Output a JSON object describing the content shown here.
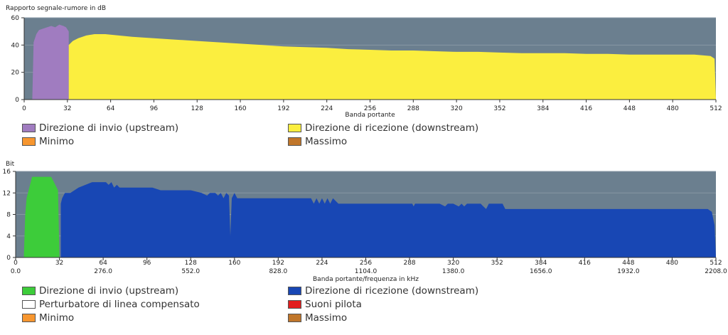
{
  "chart_data": [
    {
      "type": "area",
      "title": "",
      "ylabel": "Rapporto segnale-rumore in dB",
      "xlabel": "Banda portante",
      "xlim": [
        0,
        512
      ],
      "ylim": [
        0,
        60
      ],
      "yticks": [
        "0",
        "20",
        "40",
        "60"
      ],
      "xticks": [
        "0",
        "32",
        "64",
        "96",
        "128",
        "160",
        "192",
        "224",
        "256",
        "288",
        "320",
        "352",
        "384",
        "416",
        "448",
        "480",
        "512"
      ],
      "background": "#6b7f8f",
      "grid": true,
      "series": [
        {
          "name": "Direzione di invio (upstream)",
          "color": "#a07cc0",
          "points": [
            [
              6,
              0
            ],
            [
              7,
              42
            ],
            [
              9,
              48
            ],
            [
              11,
              51
            ],
            [
              14,
              52
            ],
            [
              17,
              53
            ],
            [
              20,
              54
            ],
            [
              23,
              53
            ],
            [
              26,
              55
            ],
            [
              29,
              54
            ],
            [
              31,
              53
            ],
            [
              33,
              50
            ],
            [
              33,
              0
            ]
          ]
        },
        {
          "name": "Direzione di ricezione (downstream)",
          "color": "#fbee3f",
          "points": [
            [
              33,
              0
            ],
            [
              33,
              40
            ],
            [
              36,
              43
            ],
            [
              40,
              45
            ],
            [
              46,
              47
            ],
            [
              52,
              48
            ],
            [
              60,
              48
            ],
            [
              70,
              47
            ],
            [
              80,
              46
            ],
            [
              96,
              45
            ],
            [
              112,
              44
            ],
            [
              128,
              43
            ],
            [
              144,
              42
            ],
            [
              160,
              41
            ],
            [
              176,
              40
            ],
            [
              192,
              39
            ],
            [
              208,
              38.5
            ],
            [
              224,
              38
            ],
            [
              240,
              37
            ],
            [
              256,
              36.5
            ],
            [
              272,
              36
            ],
            [
              288,
              36
            ],
            [
              304,
              35.5
            ],
            [
              320,
              35
            ],
            [
              336,
              35
            ],
            [
              352,
              34.5
            ],
            [
              368,
              34
            ],
            [
              384,
              34
            ],
            [
              400,
              34
            ],
            [
              416,
              33.5
            ],
            [
              432,
              33.5
            ],
            [
              448,
              33
            ],
            [
              464,
              33
            ],
            [
              480,
              33
            ],
            [
              496,
              33
            ],
            [
              508,
              32
            ],
            [
              511,
              30
            ],
            [
              512,
              0
            ]
          ]
        },
        {
          "name": "Minimo",
          "color": "#f7962f",
          "points": []
        },
        {
          "name": "Massimo",
          "color": "#c0762a",
          "points": []
        }
      ]
    },
    {
      "type": "area",
      "title": "",
      "ylabel": "Bit",
      "xlabel": "Banda portante/frequenza in kHz",
      "xlim": [
        0,
        512
      ],
      "ylim": [
        0,
        16
      ],
      "yticks": [
        "0",
        "4",
        "8",
        "12",
        "16"
      ],
      "xticks": [
        "0",
        "32",
        "64",
        "96",
        "128",
        "160",
        "192",
        "224",
        "256",
        "288",
        "320",
        "352",
        "384",
        "416",
        "448",
        "480",
        "512"
      ],
      "xticks_khz": [
        "0.0",
        "276.0",
        "552.0",
        "828.0",
        "1104.0",
        "1380.0",
        "1656.0",
        "1932.0",
        "2208.0"
      ],
      "background": "#6b7f8f",
      "grid": true,
      "series": [
        {
          "name": "Direzione di invio (upstream)",
          "color": "#3dcc3a",
          "points": [
            [
              6,
              0
            ],
            [
              7,
              8
            ],
            [
              8,
              11
            ],
            [
              9,
              12
            ],
            [
              11,
              14
            ],
            [
              12,
              15
            ],
            [
              14,
              15
            ],
            [
              18,
              15
            ],
            [
              22,
              15
            ],
            [
              26,
              15
            ],
            [
              28,
              14
            ],
            [
              30,
              13
            ],
            [
              31,
              12.5
            ],
            [
              32,
              0
            ]
          ]
        },
        {
          "name": "Direzione di ricezione (downstream)",
          "color": "#1847b4",
          "points": [
            [
              33,
              0
            ],
            [
              33,
              10
            ],
            [
              34,
              11
            ],
            [
              36,
              12
            ],
            [
              40,
              12
            ],
            [
              46,
              13
            ],
            [
              56,
              14
            ],
            [
              66,
              14
            ],
            [
              68,
              13.5
            ],
            [
              70,
              14
            ],
            [
              72,
              13
            ],
            [
              74,
              13.5
            ],
            [
              76,
              13
            ],
            [
              100,
              13
            ],
            [
              106,
              12.5
            ],
            [
              112,
              12.5
            ],
            [
              128,
              12.5
            ],
            [
              136,
              12
            ],
            [
              140,
              11.5
            ],
            [
              142,
              12
            ],
            [
              146,
              12
            ],
            [
              148,
              11.5
            ],
            [
              150,
              12
            ],
            [
              152,
              11
            ],
            [
              154,
              12
            ],
            [
              156,
              11.5
            ],
            [
              157,
              4
            ],
            [
              158,
              11
            ],
            [
              160,
              12
            ],
            [
              162,
              11
            ],
            [
              166,
              11
            ],
            [
              180,
              11
            ],
            [
              200,
              11
            ],
            [
              216,
              11
            ],
            [
              218,
              10
            ],
            [
              220,
              11
            ],
            [
              222,
              10
            ],
            [
              224,
              11
            ],
            [
              226,
              10
            ],
            [
              228,
              11
            ],
            [
              230,
              10
            ],
            [
              232,
              11
            ],
            [
              236,
              10
            ],
            [
              240,
              10
            ],
            [
              256,
              10
            ],
            [
              280,
              10
            ],
            [
              290,
              10
            ],
            [
              291,
              9.5
            ],
            [
              292,
              10
            ],
            [
              300,
              10
            ],
            [
              310,
              10
            ],
            [
              314,
              9.5
            ],
            [
              316,
              10
            ],
            [
              320,
              10
            ],
            [
              324,
              9.5
            ],
            [
              326,
              10
            ],
            [
              328,
              9.5
            ],
            [
              330,
              10
            ],
            [
              336,
              10
            ],
            [
              340,
              10
            ],
            [
              342,
              9.5
            ],
            [
              344,
              9
            ],
            [
              346,
              10
            ],
            [
              350,
              10
            ],
            [
              356,
              10
            ],
            [
              357,
              9.5
            ],
            [
              358,
              9
            ],
            [
              360,
              9
            ],
            [
              380,
              9
            ],
            [
              400,
              9
            ],
            [
              420,
              9
            ],
            [
              440,
              9
            ],
            [
              460,
              9
            ],
            [
              480,
              9
            ],
            [
              500,
              9
            ],
            [
              506,
              9
            ],
            [
              509,
              8.5
            ],
            [
              511,
              6
            ],
            [
              512,
              0
            ]
          ]
        },
        {
          "name": "Perturbatore di linea compensato",
          "color": "#ffffff",
          "points": []
        },
        {
          "name": "Suoni pilota",
          "color": "#e21d1d",
          "points": []
        },
        {
          "name": "Minimo",
          "color": "#f7962f",
          "points": []
        },
        {
          "name": "Massimo",
          "color": "#c0762a",
          "points": []
        }
      ]
    }
  ]
}
